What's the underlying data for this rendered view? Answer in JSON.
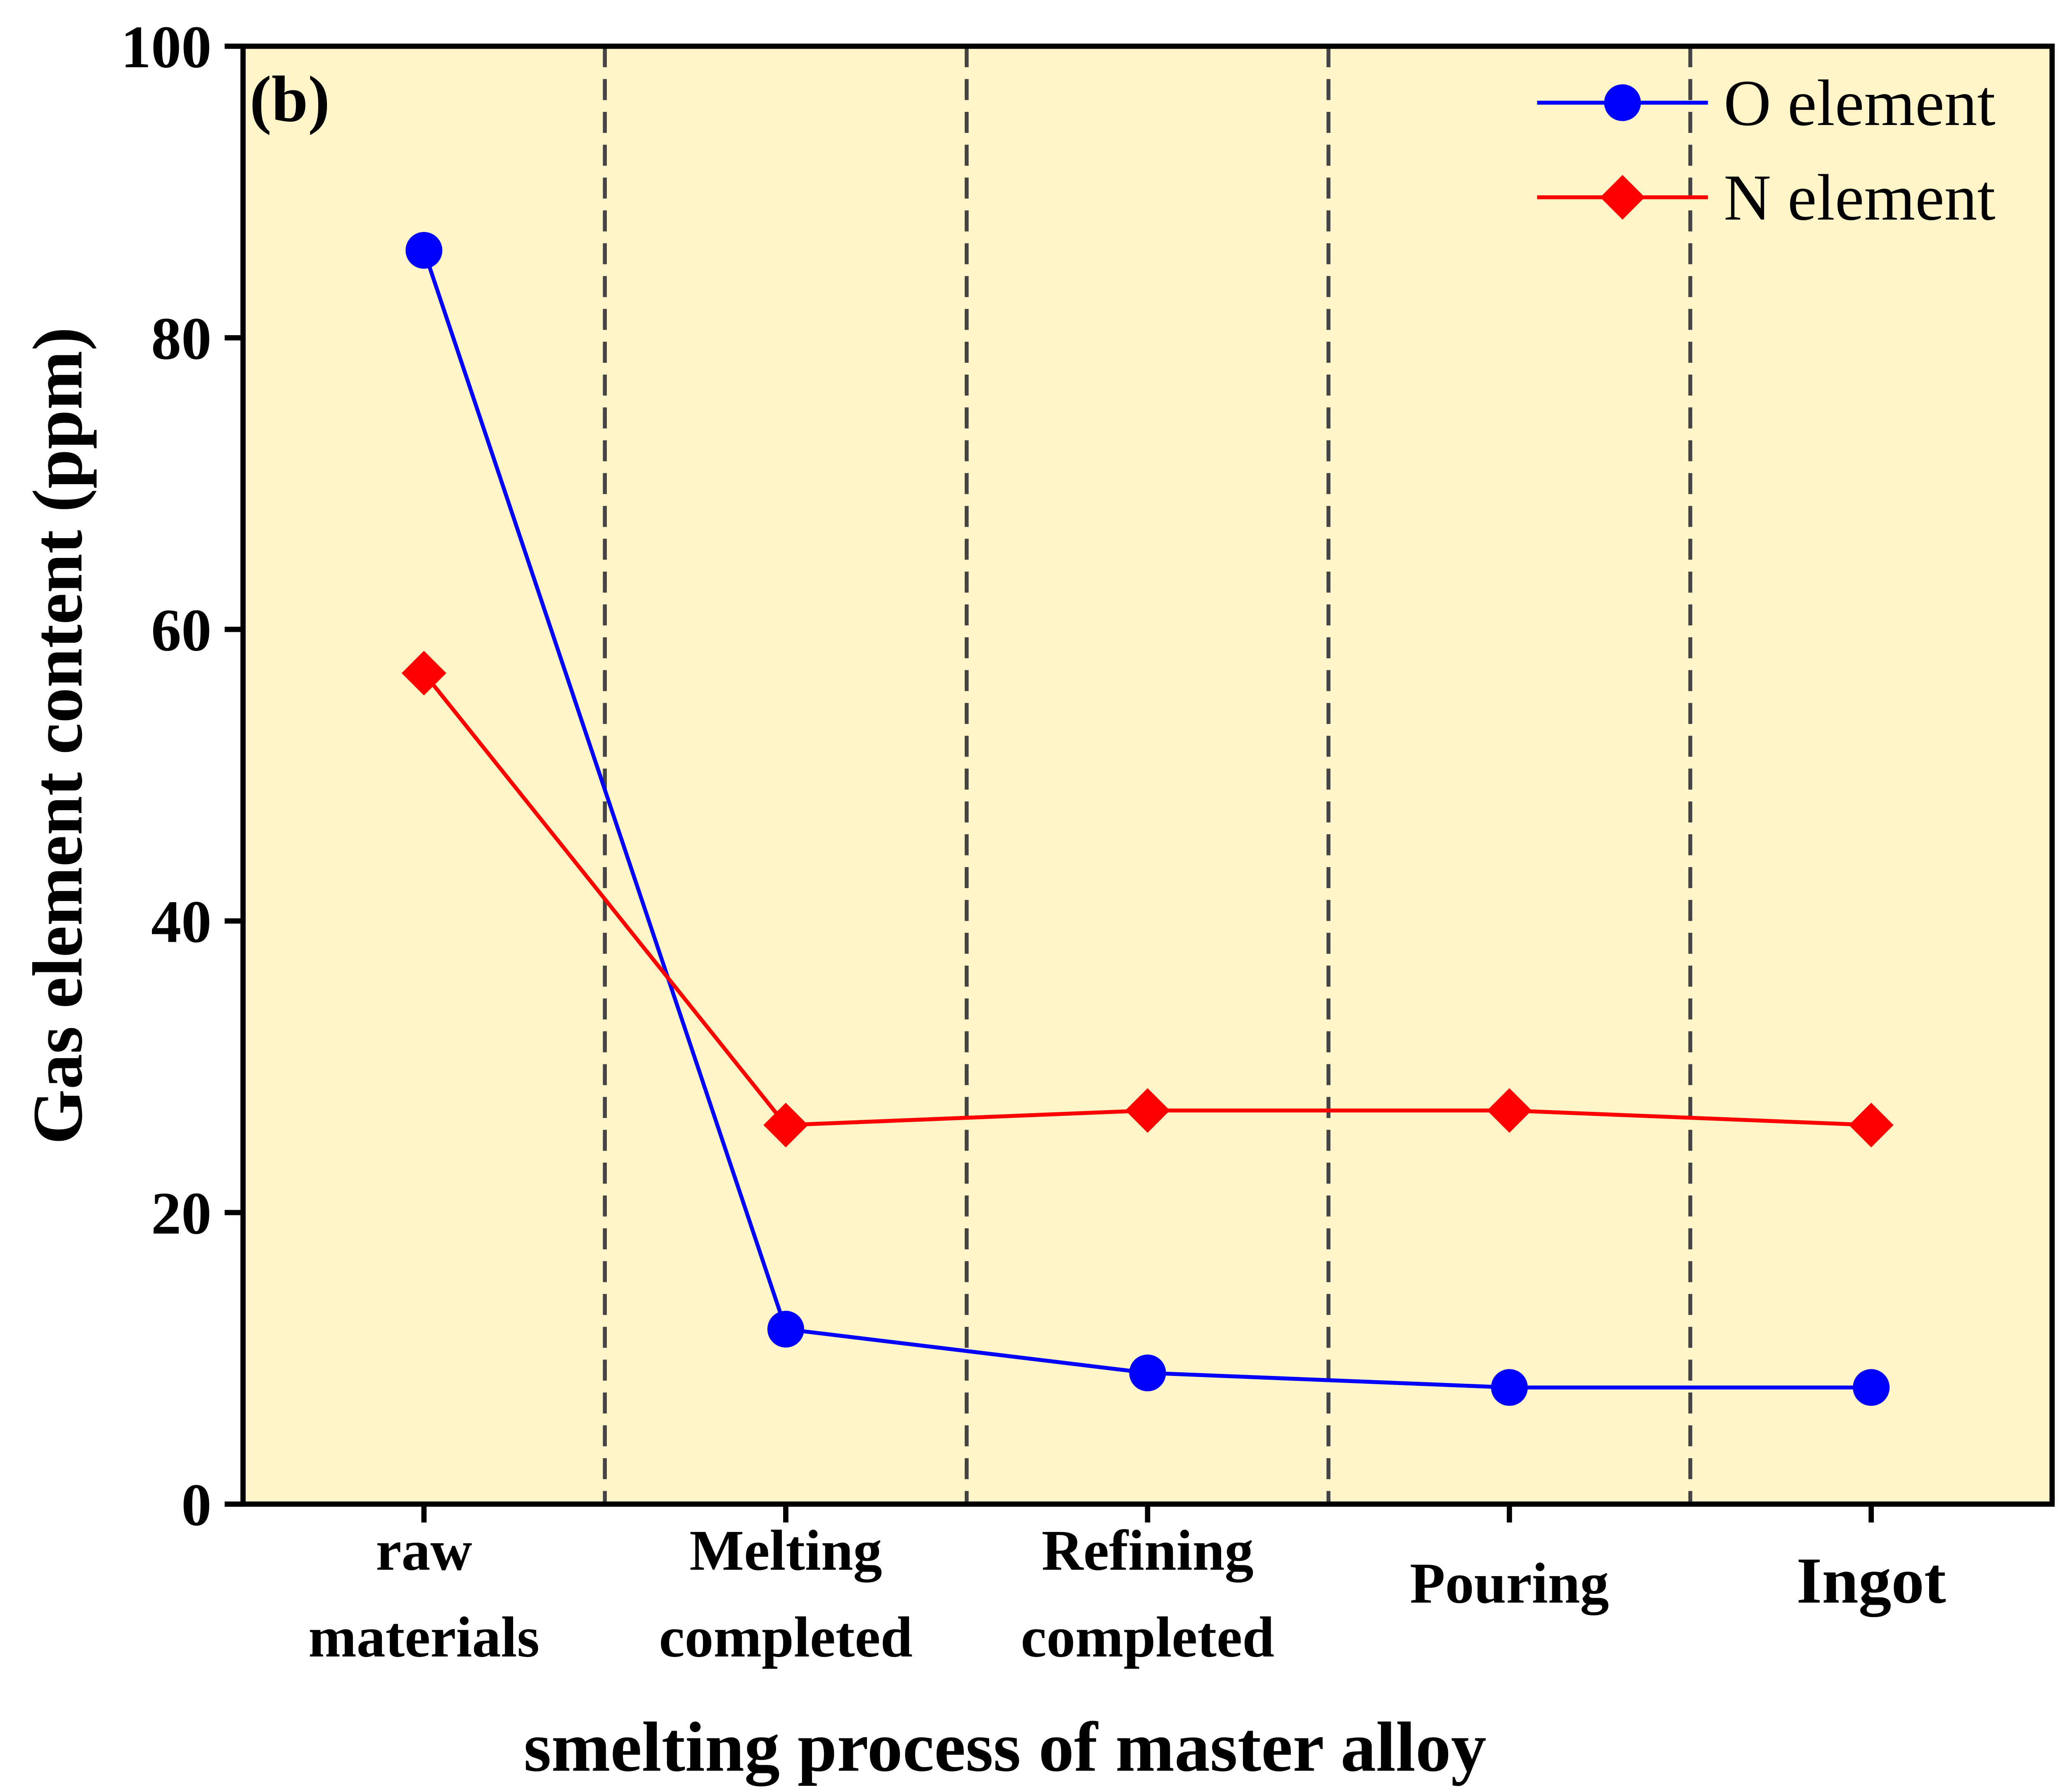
{
  "chart_data": {
    "type": "line",
    "panel_label": "(b)",
    "categories": [
      [
        "raw",
        "materials"
      ],
      [
        "Melting",
        "completed"
      ],
      [
        "Refining",
        "completed"
      ],
      [
        "Pouring"
      ],
      [
        "Ingot"
      ]
    ],
    "series": [
      {
        "name": "O element",
        "color": "#0000FF",
        "marker": "circle",
        "values": [
          86,
          12,
          9,
          8,
          8
        ]
      },
      {
        "name": "N element",
        "color": "#FF0000",
        "marker": "diamond",
        "values": [
          57,
          26,
          27,
          27,
          26
        ]
      }
    ],
    "xlabel": "smelting process of master alloy",
    "ylabel": "Gas element content (ppm)",
    "ylim": [
      0,
      100
    ],
    "yticks": [
      0,
      20,
      40,
      60,
      80,
      100
    ],
    "grid": false,
    "separators": "dashed vertical lines between categories",
    "background_color": "#FFF5C8",
    "legend_position": "top-right"
  }
}
